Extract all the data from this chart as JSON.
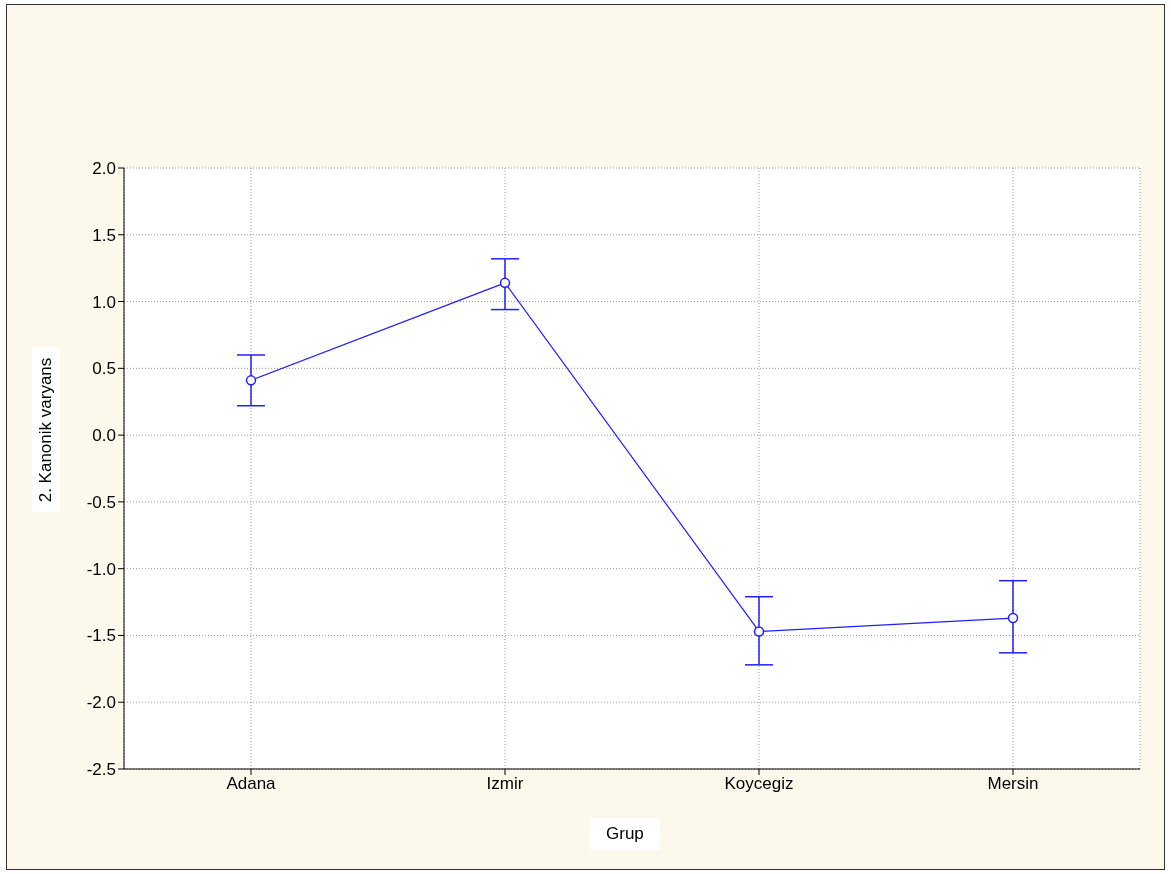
{
  "chart_data": {
    "type": "line",
    "xlabel": "Grup",
    "ylabel": "2. Kanonik varyans",
    "categories": [
      "Adana",
      "Izmir",
      "Koycegiz",
      "Mersin"
    ],
    "series": [
      {
        "color": "#1f1fff",
        "values": [
          0.41,
          1.14,
          -1.47,
          -1.37
        ],
        "errors": [
          [
            0.22,
            0.6
          ],
          [
            0.94,
            1.32
          ],
          [
            -1.72,
            -1.21
          ],
          [
            -1.63,
            -1.09
          ]
        ]
      }
    ],
    "ylim": [
      -2.5,
      2.0
    ],
    "yticks": [
      {
        "value": -2.5,
        "label": "-2.5"
      },
      {
        "value": -2,
        "label": "-2.0"
      },
      {
        "value": -1.5,
        "label": "-1.5"
      },
      {
        "value": -1,
        "label": "-1.0"
      },
      {
        "value": -0.5,
        "label": "-0.5"
      },
      {
        "value": 0,
        "label": "0.0"
      },
      {
        "value": 0.5,
        "label": "0.5"
      },
      {
        "value": 1,
        "label": "1.0"
      },
      {
        "value": 1.5,
        "label": "1.5"
      },
      {
        "value": 2,
        "label": "2.0"
      }
    ],
    "grid": true,
    "marker": "circle",
    "line_style": "solid"
  }
}
